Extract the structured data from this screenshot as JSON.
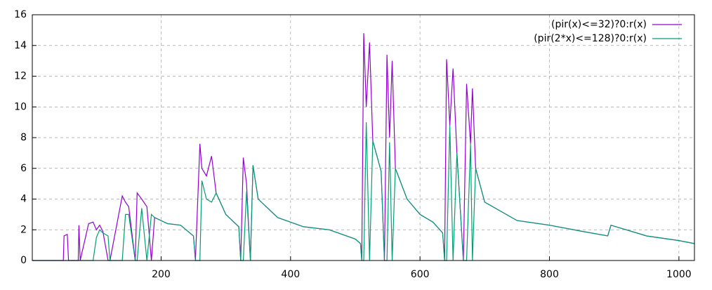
{
  "chart_data": {
    "type": "line",
    "x": [
      1,
      49,
      50,
      55,
      57,
      72,
      73,
      75,
      88,
      95,
      100,
      105,
      110,
      118,
      121,
      140,
      145,
      150,
      160,
      163,
      170,
      178,
      185,
      190,
      210,
      230,
      250,
      253,
      260,
      263,
      270,
      278,
      285,
      300,
      320,
      323,
      327,
      332,
      338,
      342,
      350,
      380,
      420,
      460,
      500,
      508,
      510,
      513,
      517,
      522,
      527,
      540,
      545,
      549,
      553,
      557,
      562,
      580,
      600,
      620,
      635,
      638,
      641,
      646,
      651,
      657,
      667,
      672,
      678,
      681,
      686,
      700,
      750,
      800,
      850,
      890,
      895,
      950,
      1000,
      1024
    ],
    "series": [
      {
        "name": "(pir(x)<=32)?0:r(x)",
        "color": "#9400d3",
        "values": [
          0,
          0,
          1.6,
          1.7,
          0,
          0,
          2.3,
          0,
          2.4,
          2.5,
          2.0,
          2.3,
          1.9,
          0,
          0,
          4.2,
          3.8,
          3.5,
          0,
          4.4,
          4.0,
          3.5,
          0,
          2.8,
          2.4,
          2.3,
          1.6,
          0,
          7.6,
          6.0,
          5.5,
          6.8,
          4.4,
          3.0,
          2.2,
          0,
          6.7,
          5.0,
          0,
          6.2,
          4.0,
          2.8,
          2.2,
          2.0,
          1.4,
          1.1,
          0,
          14.8,
          10.0,
          14.2,
          7.8,
          5.8,
          0,
          13.4,
          8.0,
          13.0,
          6.0,
          4.0,
          3.0,
          2.5,
          1.8,
          0,
          13.1,
          8.8,
          12.5,
          7.0,
          0,
          11.5,
          7.6,
          11.2,
          6.0,
          3.8,
          2.6,
          2.3,
          1.9,
          1.6,
          2.3,
          1.6,
          1.3,
          1.1
        ]
      },
      {
        "name": "(pir(2*x)<=128)?0:r(x)",
        "color": "#009e73",
        "values": [
          0,
          0,
          0,
          0,
          0,
          0,
          0,
          0,
          0,
          0,
          1.5,
          2.0,
          1.8,
          1.6,
          0,
          0,
          3.0,
          3.0,
          0,
          0,
          3.4,
          0,
          3.0,
          2.8,
          2.4,
          2.3,
          1.6,
          0,
          0,
          5.2,
          4.0,
          3.8,
          4.4,
          3.0,
          2.2,
          0,
          0,
          4.5,
          0,
          6.2,
          4.0,
          2.8,
          2.2,
          2.0,
          1.4,
          1.1,
          0,
          0,
          9.0,
          0,
          7.8,
          5.8,
          0,
          0,
          7.7,
          0,
          6.0,
          4.0,
          3.0,
          2.5,
          1.8,
          0,
          0,
          8.8,
          0,
          7.0,
          0,
          0,
          7.6,
          0,
          6.0,
          3.8,
          2.6,
          2.3,
          1.9,
          1.6,
          2.3,
          1.6,
          1.3,
          1.1
        ]
      }
    ],
    "xlim": [
      1,
      1024
    ],
    "xticks": [
      200,
      400,
      600,
      800,
      1000
    ],
    "ylim": [
      0,
      16
    ],
    "yticks": [
      0,
      2,
      4,
      6,
      8,
      10,
      12,
      14,
      16
    ],
    "grid": true,
    "legend": "top-right"
  }
}
